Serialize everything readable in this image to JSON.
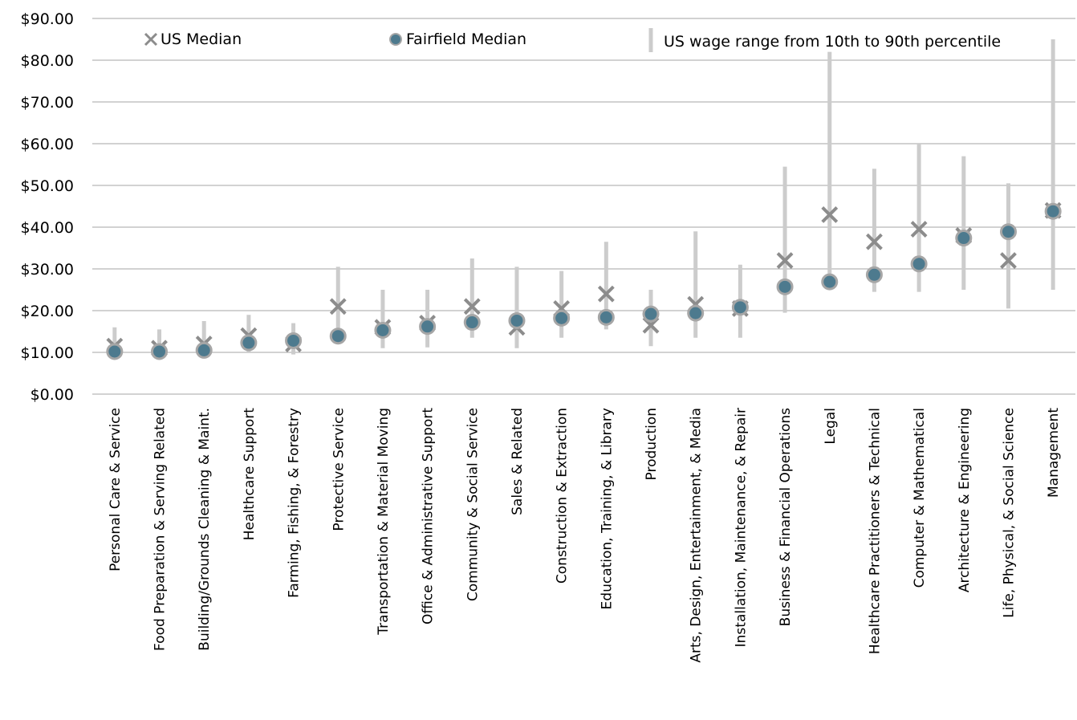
{
  "chart_data": {
    "type": "scatter",
    "title": "",
    "xlabel": "",
    "ylabel": "",
    "ylim": [
      0,
      90
    ],
    "yticks": [
      0,
      10,
      20,
      30,
      40,
      50,
      60,
      70,
      80,
      90
    ],
    "ytick_labels": [
      "$0.00",
      "$10.00",
      "$20.00",
      "$30.00",
      "$40.00",
      "$50.00",
      "$60.00",
      "$70.00",
      "$80.00",
      "$90.00"
    ],
    "grid": true,
    "legend_position": "top",
    "colors": {
      "range": "#cccccc",
      "us_median": "#8c8c8c",
      "fairfield_fill": "#4d7a8e",
      "fairfield_edge": "#a6a6a6"
    },
    "categories": [
      "Personal Care & Service",
      "Food Preparation & Serving Related",
      "Building/Grounds Cleaning & Maint.",
      "Healthcare Support",
      "Farming, Fishing, & Forestry",
      "Protective Service",
      "Transportation & Material Moving",
      "Office & Administrative Support",
      "Community & Social Service",
      "Sales & Related",
      "Construction & Extraction",
      "Education, Training, & Library",
      "Production",
      "Arts, Design, Entertainment, & Media",
      "Installation, Maintenance, & Repair",
      "Business & Financial Operations",
      "Legal",
      "Healthcare Practitioners & Technical",
      "Computer & Mathematical",
      "Architecture & Engineering",
      "Life, Physical, & Social Science",
      "Management"
    ],
    "series": [
      {
        "name": "US Median",
        "marker": "x",
        "values": [
          11.5,
          11.0,
          12.0,
          14.0,
          12.0,
          21.0,
          16.0,
          17.0,
          21.0,
          16.0,
          20.5,
          24.0,
          16.5,
          21.5,
          20.5,
          32.0,
          43.0,
          36.5,
          39.5,
          38.0,
          32.0,
          44.0
        ]
      },
      {
        "name": "Fairfield Median",
        "marker": "circle",
        "values": [
          10.2,
          10.2,
          10.5,
          12.3,
          12.8,
          13.9,
          15.3,
          16.2,
          17.2,
          17.6,
          18.2,
          18.4,
          19.2,
          19.4,
          20.8,
          25.7,
          26.9,
          28.6,
          31.2,
          37.4,
          38.9,
          43.8
        ]
      },
      {
        "name": "US wage range from 10th to 90th percentile",
        "marker": "range",
        "low": [
          8.5,
          8.5,
          9.0,
          10.0,
          9.5,
          12.0,
          11.0,
          11.2,
          13.5,
          11.0,
          13.5,
          15.5,
          11.5,
          13.5,
          13.5,
          19.5,
          27.5,
          24.5,
          24.5,
          25.0,
          20.5,
          25.0
        ],
        "high": [
          16.0,
          15.5,
          17.5,
          19.0,
          17.0,
          30.5,
          25.0,
          25.0,
          32.5,
          30.5,
          29.5,
          36.5,
          25.0,
          39.0,
          31.0,
          54.5,
          82.0,
          54.0,
          60.0,
          57.0,
          50.5,
          85.0
        ]
      }
    ]
  },
  "legend": {
    "us_median": "US Median",
    "fairfield_median": "Fairfield Median",
    "range": "US wage range from 10th to 90th percentile"
  }
}
